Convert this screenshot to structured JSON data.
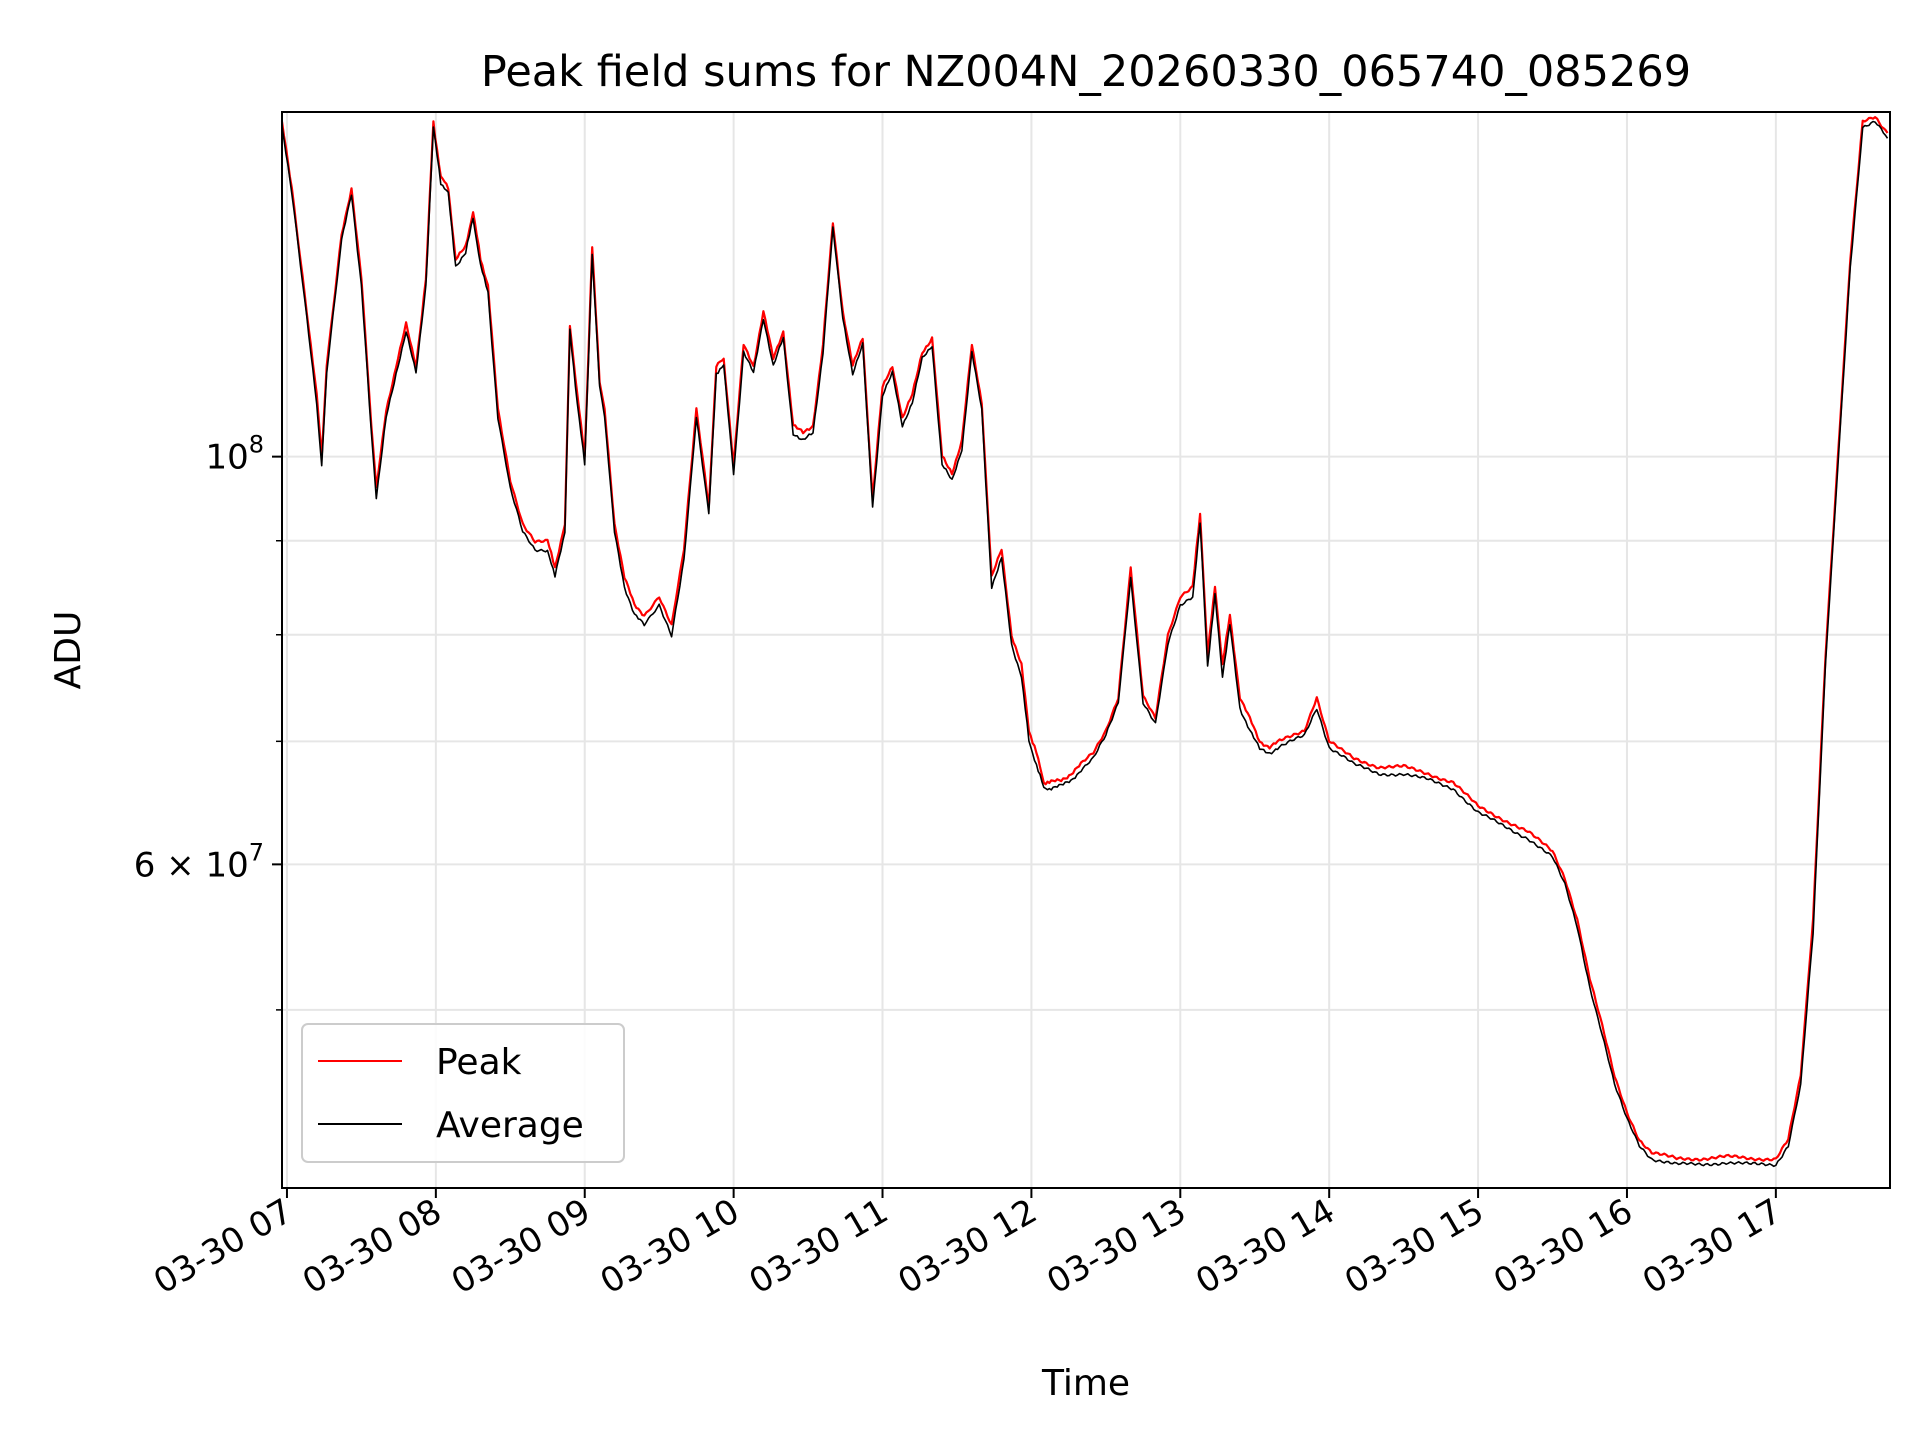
{
  "chart_data": {
    "type": "line",
    "title": "Peak field sums for NZ004N_20260330_065740_085269",
    "xlabel": "Time",
    "ylabel": "ADU",
    "yscale": "log",
    "xlim": [
      "2026-03-30 06:58",
      "2026-03-30 17:46"
    ],
    "ylim": [
      40000000,
      154000000
    ],
    "grid": true,
    "legend": "lower-left",
    "x_ticks": [
      "03-30 07",
      "03-30 08",
      "03-30 09",
      "03-30 10",
      "03-30 11",
      "03-30 12",
      "03-30 13",
      "03-30 14",
      "03-30 15",
      "03-30 16",
      "03-30 17"
    ],
    "y_ticks": [
      {
        "value": 100000000,
        "base": "10",
        "exp": "8"
      },
      {
        "value": 60000000,
        "base": "6 × 10",
        "exp": "7"
      }
    ],
    "y_minor_ticks": [
      50000000,
      70000000,
      80000000,
      90000000
    ],
    "x": [
      "06:58",
      "07:02",
      "07:08",
      "07:12",
      "07:14",
      "07:16",
      "07:22",
      "07:26",
      "07:30",
      "07:34",
      "07:36",
      "07:40",
      "07:44",
      "07:48",
      "07:52",
      "07:56",
      "07:59",
      "08:02",
      "08:05",
      "08:08",
      "08:12",
      "08:15",
      "08:18",
      "08:21",
      "08:25",
      "08:30",
      "08:35",
      "08:40",
      "08:45",
      "08:48",
      "08:52",
      "08:54",
      "08:57",
      "09:00",
      "09:03",
      "09:06",
      "09:08",
      "09:12",
      "09:16",
      "09:20",
      "09:24",
      "09:30",
      "09:35",
      "09:40",
      "09:45",
      "09:50",
      "09:53",
      "09:56",
      "10:00",
      "10:04",
      "10:08",
      "10:12",
      "10:16",
      "10:20",
      "10:24",
      "10:28",
      "10:32",
      "10:36",
      "10:40",
      "10:44",
      "10:48",
      "10:52",
      "10:56",
      "11:00",
      "11:04",
      "11:08",
      "11:12",
      "11:16",
      "11:20",
      "11:24",
      "11:28",
      "11:32",
      "11:36",
      "11:40",
      "11:44",
      "11:48",
      "11:52",
      "11:56",
      "11:59",
      "12:02",
      "12:05",
      "12:08",
      "12:12",
      "12:16",
      "12:20",
      "12:25",
      "12:30",
      "12:35",
      "12:40",
      "12:45",
      "12:50",
      "12:55",
      "13:00",
      "13:05",
      "13:08",
      "13:11",
      "13:14",
      "13:17",
      "13:20",
      "13:24",
      "13:28",
      "13:32",
      "13:36",
      "13:40",
      "13:45",
      "13:50",
      "13:55",
      "14:00",
      "14:05",
      "14:10",
      "14:20",
      "14:30",
      "14:40",
      "14:50",
      "15:00",
      "15:10",
      "15:20",
      "15:30",
      "15:35",
      "15:40",
      "15:45",
      "15:50",
      "15:55",
      "16:00",
      "16:05",
      "16:10",
      "16:20",
      "16:30",
      "16:40",
      "16:50",
      "17:00",
      "17:05",
      "17:10",
      "17:15",
      "17:20",
      "17:25",
      "17:30",
      "17:35",
      "17:40",
      "17:45"
    ],
    "series": [
      {
        "name": "Peak",
        "color": "#ff0000",
        "values": [
          152000000,
          140000000,
          120000000,
          108000000,
          100000000,
          112000000,
          132000000,
          140000000,
          125000000,
          104000000,
          96000000,
          106000000,
          112000000,
          118000000,
          112000000,
          125000000,
          152000000,
          142000000,
          140000000,
          128000000,
          130000000,
          136000000,
          128000000,
          124000000,
          106000000,
          97000000,
          92000000,
          90000000,
          90000000,
          87000000,
          92000000,
          118000000,
          108000000,
          100000000,
          130000000,
          110000000,
          106000000,
          92000000,
          86000000,
          83000000,
          82000000,
          84000000,
          81000000,
          89000000,
          106000000,
          94000000,
          112000000,
          113000000,
          99000000,
          115000000,
          112000000,
          120000000,
          113000000,
          117000000,
          104000000,
          103000000,
          104000000,
          115000000,
          134000000,
          120000000,
          112000000,
          116000000,
          95000000,
          109000000,
          112000000,
          105000000,
          108000000,
          114000000,
          116000000,
          100000000,
          98000000,
          102000000,
          115000000,
          107000000,
          86000000,
          89000000,
          80000000,
          77000000,
          71000000,
          69000000,
          66500000,
          66500000,
          66700000,
          67200000,
          68000000,
          69000000,
          71000000,
          74000000,
          87000000,
          74000000,
          72000000,
          80000000,
          84000000,
          85000000,
          93000000,
          78000000,
          85000000,
          77000000,
          82000000,
          74000000,
          72000000,
          70000000,
          69500000,
          70000000,
          70500000,
          71000000,
          74000000,
          70000000,
          69200000,
          68500000,
          67800000,
          67800000,
          67200000,
          66500000,
          64500000,
          63500000,
          62500000,
          61000000,
          59000000,
          56000000,
          52000000,
          49000000,
          46000000,
          44000000,
          42500000,
          41800000,
          41500000,
          41500000,
          41600000,
          41500000,
          41500000,
          42500000,
          46000000,
          56000000,
          78000000,
          100000000,
          128000000,
          152000000,
          153000000,
          150000000
        ]
      },
      {
        "name": "Average",
        "color": "#000000",
        "values": [
          151000000,
          139000000,
          119000000,
          107000000,
          99000000,
          111000000,
          131000000,
          139000000,
          124000000,
          103000000,
          95000000,
          105000000,
          111000000,
          117000000,
          111000000,
          124000000,
          151000000,
          141000000,
          139000000,
          127000000,
          129000000,
          135000000,
          127000000,
          123000000,
          105000000,
          96000000,
          91000000,
          89000000,
          89000000,
          86000000,
          91000000,
          117000000,
          107000000,
          99000000,
          129000000,
          109000000,
          105000000,
          91000000,
          85000000,
          82000000,
          81000000,
          83000000,
          80000000,
          88000000,
          105000000,
          93000000,
          111000000,
          112000000,
          98000000,
          114000000,
          111000000,
          119000000,
          112000000,
          116000000,
          103000000,
          102000000,
          103000000,
          114000000,
          133000000,
          119000000,
          111000000,
          115000000,
          94000000,
          108000000,
          111000000,
          104000000,
          107000000,
          113000000,
          115000000,
          99000000,
          97000000,
          101000000,
          114000000,
          106000000,
          85000000,
          88000000,
          79000000,
          76000000,
          70000000,
          68000000,
          66000000,
          66000000,
          66200000,
          66700000,
          67500000,
          68500000,
          70500000,
          73500000,
          86000000,
          73500000,
          71500000,
          79000000,
          83000000,
          84000000,
          92000000,
          77000000,
          84000000,
          76000000,
          81000000,
          73000000,
          71000000,
          69300000,
          69000000,
          69500000,
          70000000,
          70500000,
          73000000,
          69500000,
          68800000,
          68000000,
          67200000,
          67200000,
          66700000,
          66000000,
          64000000,
          63000000,
          62000000,
          60500000,
          58500000,
          55500000,
          51500000,
          48500000,
          45500000,
          43600000,
          42200000,
          41500000,
          41200000,
          41200000,
          41300000,
          41200000,
          41200000,
          42200000,
          45500000,
          55000000,
          77000000,
          99000000,
          127000000,
          151000000,
          152000000,
          149000000
        ]
      }
    ]
  }
}
